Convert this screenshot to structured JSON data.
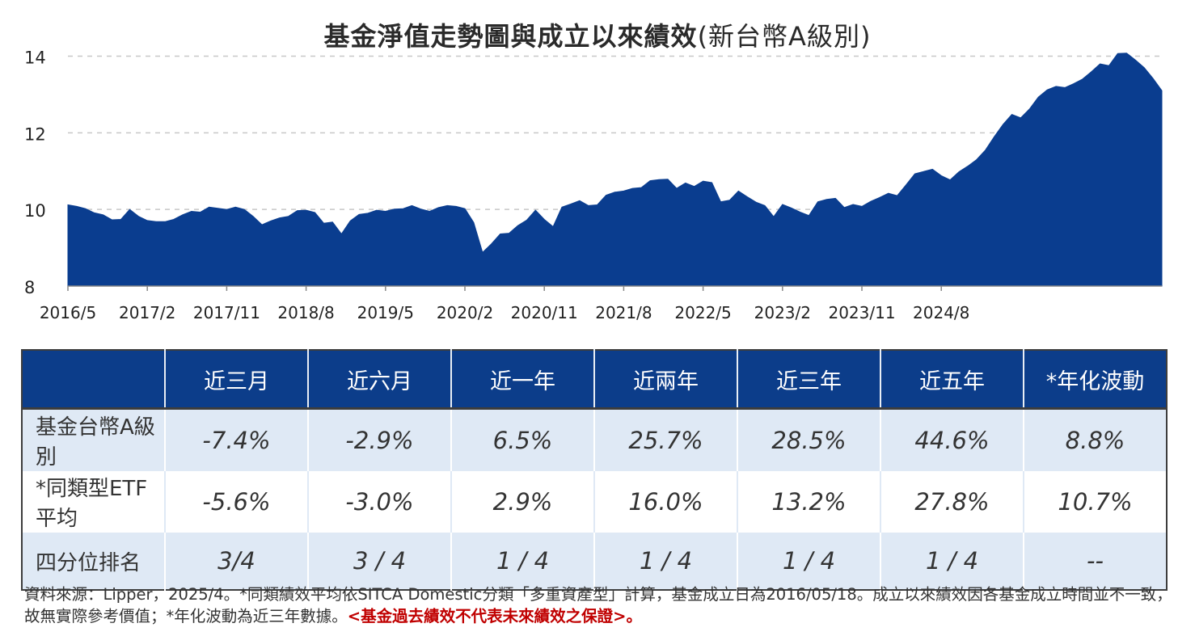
{
  "chart_data": {
    "type": "area",
    "title": "基金淨值走勢圖與成立以來績效",
    "subtitle": "(新台幣A級別)",
    "xlabel": "",
    "ylabel": "",
    "ylim": [
      8,
      14.2
    ],
    "y_ticks": [
      "8",
      "10",
      "12",
      "14"
    ],
    "x_ticks": [
      "2016/5",
      "2017/2",
      "2017/11",
      "2018/8",
      "2019/5",
      "2020/2",
      "2020/11",
      "2021/8",
      "2022/5",
      "2023/2",
      "2023/11",
      "2024/8"
    ],
    "grid": true,
    "color": "#0a3d8f",
    "series": [
      {
        "values": [
          10.12,
          10.08,
          10.02,
          9.91,
          9.86,
          9.73,
          9.74,
          10.0,
          9.82,
          9.71,
          9.68,
          9.68,
          9.74,
          9.86,
          9.95,
          9.93,
          10.06,
          10.03,
          10.0,
          10.06,
          10.0,
          9.82,
          9.6,
          9.7,
          9.78,
          9.82,
          9.97,
          9.98,
          9.92,
          9.64,
          9.67,
          9.36,
          9.7,
          9.87,
          9.9,
          9.98,
          9.95,
          10.01,
          10.02,
          10.1,
          10.01,
          9.95,
          10.05,
          10.1,
          10.08,
          10.02,
          9.66,
          8.88,
          9.1,
          9.36,
          9.38,
          9.58,
          9.72,
          9.98,
          9.74,
          9.55,
          10.06,
          10.14,
          10.23,
          10.1,
          10.12,
          10.37,
          10.45,
          10.48,
          10.55,
          10.57,
          10.75,
          10.78,
          10.79,
          10.55,
          10.69,
          10.6,
          10.74,
          10.7,
          10.2,
          10.24,
          10.48,
          10.33,
          10.19,
          10.1,
          9.81,
          10.13,
          10.04,
          9.93,
          9.84,
          10.2,
          10.26,
          10.29,
          10.05,
          10.13,
          10.08,
          10.21,
          10.31,
          10.42,
          10.36,
          10.64,
          10.93,
          10.99,
          11.05,
          10.88,
          10.77,
          10.98,
          11.13,
          11.3,
          11.55,
          11.9,
          12.22,
          12.48,
          12.39,
          12.62,
          12.93,
          13.12,
          13.21,
          13.18,
          13.28,
          13.4,
          13.59,
          13.8,
          13.75,
          14.07,
          14.08,
          13.9,
          13.7,
          13.42,
          13.1
        ]
      }
    ]
  },
  "page": {
    "title_main": "基金淨值走勢圖與成立以來績效",
    "title_sub": "(新台幣A級別)"
  },
  "table": {
    "headers": [
      "",
      "近三月",
      "近六月",
      "近一年",
      "近兩年",
      "近三年",
      "近五年",
      "*年化波動"
    ],
    "rows": [
      {
        "label": "基金台幣A級別",
        "values": [
          "-7.4%",
          "-2.9%",
          "6.5%",
          "25.7%",
          "28.5%",
          "44.6%",
          "8.8%"
        ]
      },
      {
        "label": "*同類型ETF平均",
        "values": [
          "-5.6%",
          "-3.0%",
          "2.9%",
          "16.0%",
          "13.2%",
          "27.8%",
          "10.7%"
        ]
      },
      {
        "label": "四分位排名",
        "values": [
          "3/4",
          "3 / 4",
          "1 / 4",
          "1 / 4",
          "1 / 4",
          "1 / 4",
          "--"
        ]
      }
    ]
  },
  "footnote": {
    "text": "資料來源：Lipper，2025/4。*同類績效平均依SITCA Domestic分類「多重資產型」計算，基金成立日為2016/05/18。成立以來績效因各基金成立時間並不一致，故無實際參考價值；*年化波動為近三年數據。",
    "warning": "<基金過去績效不代表未來績效之保證>。"
  }
}
